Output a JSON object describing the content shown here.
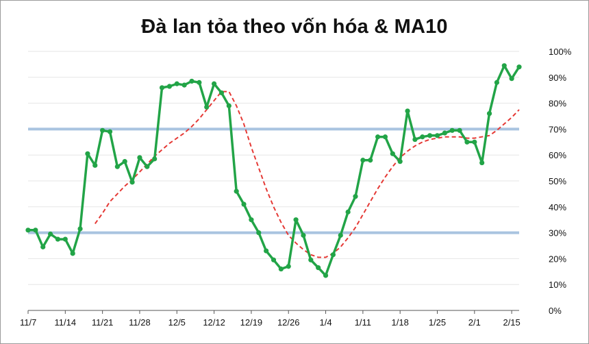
{
  "chart_data": {
    "type": "line",
    "title": "Đà lan tỏa theo vốn hóa & MA10",
    "xlabel": "",
    "ylabel": "",
    "ylim": [
      0,
      100
    ],
    "y_ticks": [
      "0%",
      "10%",
      "20%",
      "30%",
      "40%",
      "50%",
      "60%",
      "70%",
      "80%",
      "90%",
      "100%"
    ],
    "y_axis_side": "right",
    "grid": "horizontal",
    "x_ticks": [
      {
        "index": 0,
        "label": "11/7"
      },
      {
        "index": 5,
        "label": "11/14"
      },
      {
        "index": 10,
        "label": "11/21"
      },
      {
        "index": 15,
        "label": "11/28"
      },
      {
        "index": 20,
        "label": "12/5"
      },
      {
        "index": 25,
        "label": "12/12"
      },
      {
        "index": 30,
        "label": "12/19"
      },
      {
        "index": 35,
        "label": "12/26"
      },
      {
        "index": 40,
        "label": "1/4"
      },
      {
        "index": 45,
        "label": "1/11"
      },
      {
        "index": 50,
        "label": "1/18"
      },
      {
        "index": 55,
        "label": "1/25"
      },
      {
        "index": 60,
        "label": "2/1"
      },
      {
        "index": 65,
        "label": "2/15"
      }
    ],
    "reference_lines": [
      {
        "value": 30,
        "color": "#a9c4e0"
      },
      {
        "value": 70,
        "color": "#a9c4e0"
      }
    ],
    "series": [
      {
        "style": "solid-with-markers",
        "color": "#22a447",
        "values": [
          31,
          31,
          24.5,
          29.5,
          27.5,
          27.5,
          22,
          31.5,
          60.5,
          56,
          69.5,
          69,
          55.5,
          57.5,
          49.5,
          59,
          55.5,
          58.5,
          86,
          86.5,
          87.5,
          87,
          88.5,
          88,
          78.5,
          87.5,
          84,
          79,
          46,
          41,
          35,
          30,
          23,
          19.5,
          16,
          17,
          35,
          29,
          19.5,
          16.5,
          13.5,
          21.5,
          29,
          38,
          44,
          58,
          58,
          67,
          67,
          60.5,
          57.5,
          77,
          66,
          67,
          67.5,
          67.5,
          68.5,
          69.5,
          69.5,
          65,
          65,
          57,
          76,
          88,
          94.5,
          89.5,
          94
        ]
      },
      {
        "style": "dashed",
        "color": "#e53935",
        "values": [
          null,
          null,
          null,
          null,
          null,
          null,
          null,
          null,
          null,
          33.5,
          37.5,
          42,
          45,
          48,
          50.5,
          53.5,
          56.5,
          59.5,
          62,
          64.5,
          66.5,
          68.5,
          71,
          74,
          77.5,
          81,
          84.5,
          84.5,
          79,
          72,
          63,
          55,
          47,
          40,
          34,
          29,
          26,
          23.5,
          21.5,
          20.5,
          20.5,
          22,
          24.5,
          28,
          32,
          37,
          42,
          47,
          51.5,
          55.5,
          59,
          61.5,
          63.5,
          65,
          66,
          66.5,
          67,
          67,
          67,
          66.5,
          66.5,
          67,
          67.5,
          69.5,
          72,
          74.5,
          77.5
        ]
      }
    ]
  }
}
